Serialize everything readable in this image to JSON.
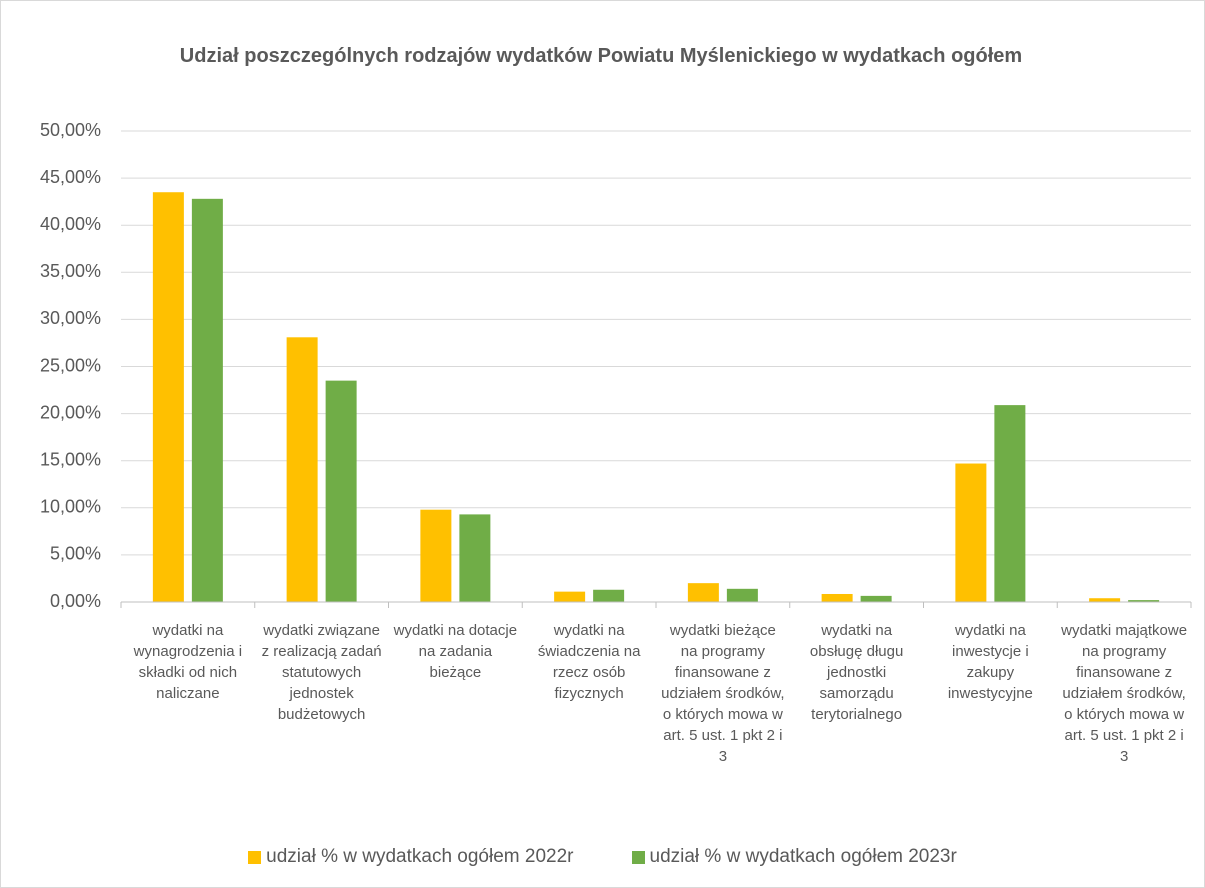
{
  "chart_data": {
    "type": "bar",
    "title": "Udział poszczególnych rodzajów wydatków Powiatu Myślenickiego w wydatkach ogółem",
    "categories": [
      "wydatki na wynagrodzenia i składki od nich naliczane",
      "wydatki związane z realizacją zadań statutowych jednostek budżetowych",
      "wydatki na dotacje na zadania bieżące",
      "wydatki na świadczenia na rzecz osób fizycznych",
      "wydatki bieżące na programy finansowane z udziałem środków, o których mowa w art. 5 ust. 1 pkt 2 i 3",
      "wydatki na obsługę długu jednostki samorządu terytorialnego",
      "wydatki na inwestycje i zakupy inwestycyjne",
      "wydatki majątkowe na programy finansowane z udziałem środków, o których mowa w art. 5 ust. 1 pkt 2 i 3"
    ],
    "series": [
      {
        "name": "udział % w wydatkach ogółem 2022r",
        "color": "#FFC000",
        "values": [
          43.5,
          28.1,
          9.8,
          1.1,
          2.0,
          0.85,
          14.7,
          0.4
        ]
      },
      {
        "name": "udział % w wydatkach ogółem 2023r",
        "color": "#70AD47",
        "values": [
          42.8,
          23.5,
          9.3,
          1.3,
          1.4,
          0.65,
          20.9,
          0.2
        ]
      }
    ],
    "ylim": [
      0,
      50
    ],
    "yticks": [
      {
        "value": 0,
        "label": "0,00%"
      },
      {
        "value": 5,
        "label": "5,00%"
      },
      {
        "value": 10,
        "label": "10,00%"
      },
      {
        "value": 15,
        "label": "15,00%"
      },
      {
        "value": 20,
        "label": "20,00%"
      },
      {
        "value": 25,
        "label": "25,00%"
      },
      {
        "value": 30,
        "label": "30,00%"
      },
      {
        "value": 35,
        "label": "35,00%"
      },
      {
        "value": 40,
        "label": "40,00%"
      },
      {
        "value": 45,
        "label": "45,00%"
      },
      {
        "value": 50,
        "label": "50,00%"
      }
    ],
    "grid": true,
    "legend": "bottom"
  }
}
